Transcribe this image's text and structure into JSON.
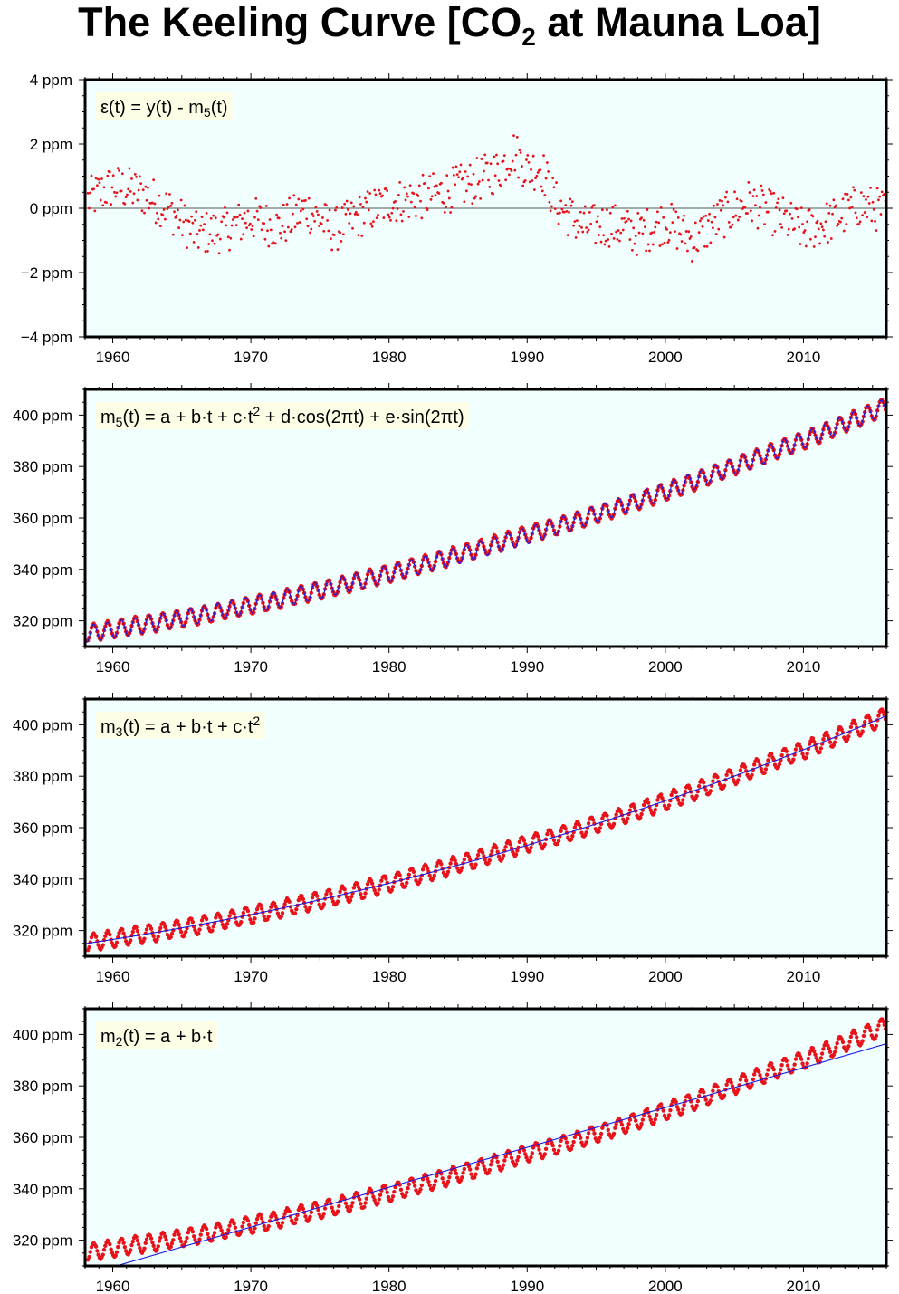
{
  "title": {
    "prefix": "The Keeling Curve [CO",
    "subscript": "2",
    "suffix": " at Mauna Loa]"
  },
  "colors": {
    "panel_background": "#f0fefe",
    "label_background": "#fefde5",
    "data_points": "#e8131a",
    "model_line": "#1a1ae6",
    "zero_line": "#555555",
    "frame": "#000000"
  },
  "chart_data": [
    {
      "type": "scatter",
      "panel": "residual",
      "formula": [
        {
          "t": "ε(t) = y(t) - m"
        },
        {
          "t": "5",
          "sub": true
        },
        {
          "t": "(t)"
        }
      ],
      "xlim": [
        1958.0,
        2016.0
      ],
      "ylim": [
        -4,
        4
      ],
      "x_ticks": [
        1960,
        1970,
        1980,
        1990,
        2000,
        2010
      ],
      "x_tick_labels": [
        "1960",
        "1970",
        "1980",
        "1990",
        "2000",
        "2010"
      ],
      "y_ticks": [
        -4,
        -2,
        0,
        2,
        4
      ],
      "y_tick_labels": [
        "−4 ppm",
        "−2 ppm",
        "0 ppm",
        "2 ppm",
        "4 ppm"
      ],
      "reference_line": 0,
      "residual_trend": {
        "x": [
          1958,
          1960,
          1962,
          1964,
          1966,
          1968,
          1970,
          1972,
          1974,
          1976,
          1978,
          1980,
          1982,
          1984,
          1986,
          1988,
          1989,
          1990,
          1991,
          1992,
          1994,
          1996,
          1998,
          2000,
          2002,
          2004,
          2006,
          2008,
          2010,
          2012,
          2014,
          2016
        ],
        "y": [
          0.2,
          0.7,
          0.5,
          0.0,
          -0.8,
          -0.7,
          -0.3,
          -0.6,
          0.0,
          -0.7,
          -0.2,
          0.2,
          0.3,
          0.5,
          0.8,
          1.2,
          1.8,
          1.2,
          1.3,
          0.2,
          -0.6,
          -0.5,
          -0.8,
          -0.4,
          -1.0,
          -0.3,
          0.2,
          -0.2,
          -0.7,
          -0.4,
          0.1,
          -0.1
        ]
      },
      "scatter_amplitude_ppm": 0.7
    },
    {
      "type": "line",
      "panel": "m5",
      "formula": [
        {
          "t": "m"
        },
        {
          "t": "5",
          "sub": true
        },
        {
          "t": "(t) = a + b·t + c·t"
        },
        {
          "t": "2",
          "sup": true
        },
        {
          "t": " + d·cos(2πt) + e·sin(2πt)"
        }
      ],
      "xlim": [
        1958.0,
        2016.0
      ],
      "ylim": [
        310,
        410
      ],
      "x_ticks": [
        1960,
        1970,
        1980,
        1990,
        2000,
        2010
      ],
      "x_tick_labels": [
        "1960",
        "1970",
        "1980",
        "1990",
        "2000",
        "2010"
      ],
      "y_ticks": [
        320,
        340,
        360,
        380,
        400
      ],
      "y_tick_labels": [
        "320 ppm",
        "340 ppm",
        "360 ppm",
        "380 ppm",
        "400 ppm"
      ],
      "model": {
        "ref_year": 1958.0,
        "a": 314.9,
        "b": 0.787,
        "c": 0.01275,
        "d": -2.4,
        "e": 2.4
      },
      "include_seasonal_in_line": true
    },
    {
      "type": "line",
      "panel": "m3",
      "formula": [
        {
          "t": "m"
        },
        {
          "t": "3",
          "sub": true
        },
        {
          "t": "(t) = a + b·t + c·t"
        },
        {
          "t": "2",
          "sup": true
        }
      ],
      "xlim": [
        1958.0,
        2016.0
      ],
      "ylim": [
        310,
        410
      ],
      "x_ticks": [
        1960,
        1970,
        1980,
        1990,
        2000,
        2010
      ],
      "x_tick_labels": [
        "1960",
        "1970",
        "1980",
        "1990",
        "2000",
        "2010"
      ],
      "y_ticks": [
        320,
        340,
        360,
        380,
        400
      ],
      "y_tick_labels": [
        "320 ppm",
        "340 ppm",
        "360 ppm",
        "380 ppm",
        "400 ppm"
      ],
      "model": {
        "ref_year": 1958.0,
        "a": 314.9,
        "b": 0.787,
        "c": 0.01275,
        "d": 0,
        "e": 0
      },
      "include_seasonal_in_line": false
    },
    {
      "type": "line",
      "panel": "m2",
      "formula": [
        {
          "t": "m"
        },
        {
          "t": "2",
          "sub": true
        },
        {
          "t": "(t) = a + b·t"
        }
      ],
      "xlim": [
        1958.0,
        2016.0
      ],
      "ylim": [
        310,
        410
      ],
      "x_ticks": [
        1960,
        1970,
        1980,
        1990,
        2000,
        2010
      ],
      "x_tick_labels": [
        "1960",
        "1970",
        "1980",
        "1990",
        "2000",
        "2010"
      ],
      "y_ticks": [
        320,
        340,
        360,
        380,
        400
      ],
      "y_tick_labels": [
        "320 ppm",
        "340 ppm",
        "360 ppm",
        "380 ppm",
        "400 ppm"
      ],
      "model": {
        "ref_year": 1958.0,
        "a": 306.5,
        "b": 1.55,
        "c": 0,
        "d": 0,
        "e": 0
      },
      "include_seasonal_in_line": false
    }
  ],
  "observations": {
    "description_free": true,
    "x_start": 1958.21,
    "x_end": 2016.0,
    "step": 0.0833,
    "trend_model": {
      "ref_year": 1958.0,
      "a": 314.9,
      "b": 0.787,
      "c": 0.01275
    },
    "seasonal_amplitude_ppm": 3.3,
    "seasonal_phase_year": 0.375
  }
}
